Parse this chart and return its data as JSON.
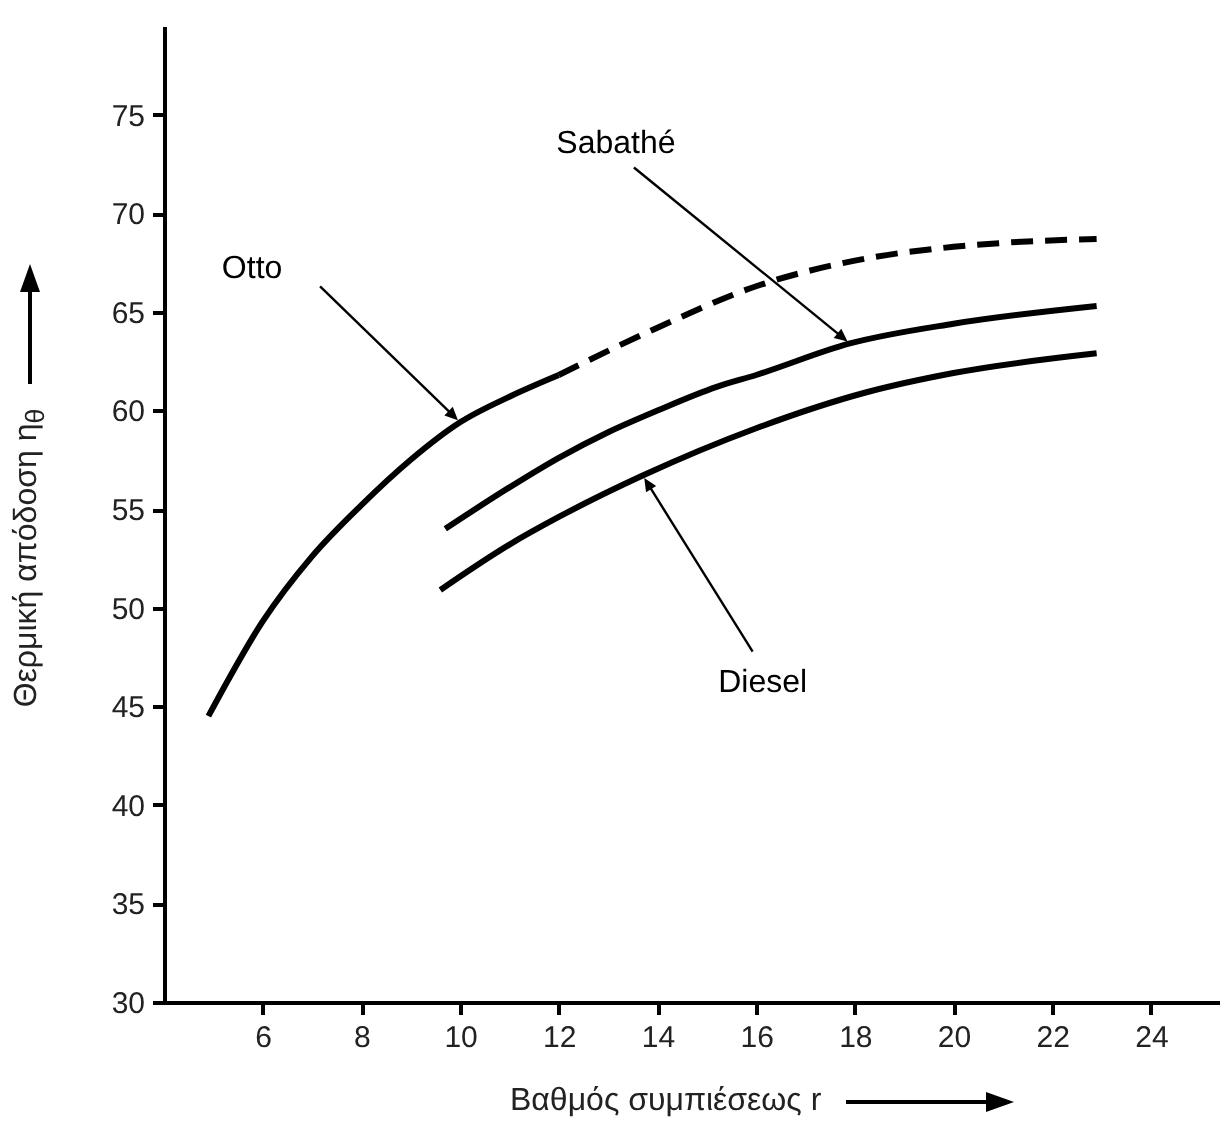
{
  "chart_data": {
    "type": "line",
    "xlabel": "Βαθμός συμπιέσεως r",
    "ylabel": "Θερμική απόδοση η$_{θ}$",
    "xlim": [
      4,
      25.4
    ],
    "xticks": [
      6,
      8,
      10,
      12,
      14,
      16,
      18,
      20,
      22,
      24
    ],
    "ylim": [
      30,
      79.5
    ],
    "yticks": [
      30,
      35,
      40,
      45,
      50,
      55,
      60,
      65,
      70,
      75
    ],
    "series": [
      {
        "name": "Otto",
        "color": "#000000",
        "line_style": "solid",
        "x": [
          4.9,
          6,
          7,
          8,
          9,
          10,
          11,
          12
        ],
        "values": [
          44.5,
          49.3,
          52.6,
          55.2,
          57.5,
          59.4,
          60.7,
          61.8
        ]
      },
      {
        "color": "#000000",
        "line_style": "dashed",
        "x": [
          12,
          14,
          16,
          18,
          20,
          21,
          22.9
        ],
        "values": [
          61.8,
          64.2,
          66.3,
          67.6,
          68.3,
          68.5,
          68.7
        ]
      },
      {
        "name": "Sabathé",
        "color": "#000000",
        "line_style": "solid",
        "x": [
          9.7,
          11,
          12,
          13,
          14,
          15.2,
          16,
          17.9,
          20,
          22.9
        ],
        "values": [
          54,
          56.1,
          57.6,
          58.9,
          60,
          61.2,
          61.8,
          63.4,
          64.4,
          65.3
        ]
      },
      {
        "name": "Diesel",
        "color": "#000000",
        "line_style": "solid",
        "x": [
          9.6,
          11,
          12,
          13.7,
          16,
          18.2,
          20,
          22.9
        ],
        "values": [
          50.9,
          53.2,
          54.6,
          56.7,
          59.1,
          60.9,
          61.9,
          62.9
        ]
      }
    ]
  }
}
